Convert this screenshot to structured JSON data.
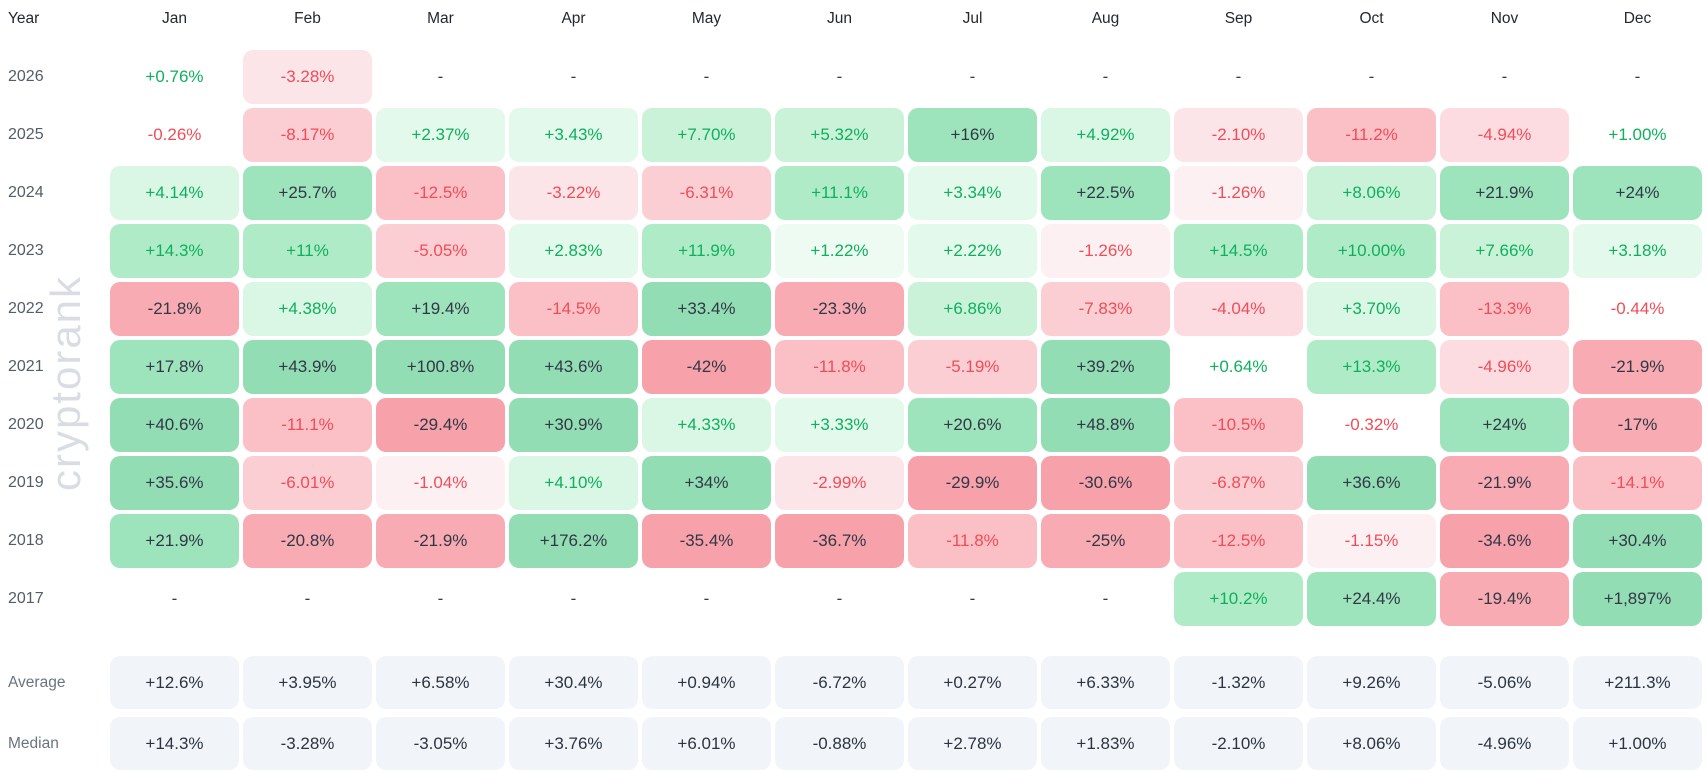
{
  "watermark": "cryptorank",
  "colors": {
    "green_text": "#0eb05e",
    "red_text": "#f14c57",
    "dark_text": "#313845",
    "dash_text": "#353c48",
    "green_bg": [
      "",
      "#eefbf2",
      "#e3f9eb",
      "#daf6e4",
      "#c9f2d9",
      "#b0ebc7",
      "#9de3bc",
      "#93ddb5"
    ],
    "red_bg": [
      "",
      "#fdf0f2",
      "#fce5e8",
      "#fcdce1",
      "#fbced3",
      "#fac0c6",
      "#f8abb2",
      "#f7a1aa"
    ],
    "summary_bg": "#f1f5fa",
    "summary_text": "#2c3440",
    "watermark_text": "#d9dde3"
  },
  "chart_data": {
    "type": "heatmap",
    "title": "Monthly returns heatmap by year",
    "row_header": "Year",
    "columns": [
      "Jan",
      "Feb",
      "Mar",
      "Apr",
      "May",
      "Jun",
      "Jul",
      "Aug",
      "Sep",
      "Oct",
      "Nov",
      "Dec"
    ],
    "rows": [
      {
        "label": "2026",
        "values": [
          "+0.76%",
          "-3.28%",
          "-",
          "-",
          "-",
          "-",
          "-",
          "-",
          "-",
          "-",
          "-",
          "-"
        ]
      },
      {
        "label": "2025",
        "values": [
          "-0.26%",
          "-8.17%",
          "+2.37%",
          "+3.43%",
          "+7.70%",
          "+5.32%",
          "+16%",
          "+4.92%",
          "-2.10%",
          "-11.2%",
          "-4.94%",
          "+1.00%"
        ]
      },
      {
        "label": "2024",
        "values": [
          "+4.14%",
          "+25.7%",
          "-12.5%",
          "-3.22%",
          "-6.31%",
          "+11.1%",
          "+3.34%",
          "+22.5%",
          "-1.26%",
          "+8.06%",
          "+21.9%",
          "+24%"
        ]
      },
      {
        "label": "2023",
        "values": [
          "+14.3%",
          "+11%",
          "-5.05%",
          "+2.83%",
          "+11.9%",
          "+1.22%",
          "+2.22%",
          "-1.26%",
          "+14.5%",
          "+10.00%",
          "+7.66%",
          "+3.18%"
        ]
      },
      {
        "label": "2022",
        "values": [
          "-21.8%",
          "+4.38%",
          "+19.4%",
          "-14.5%",
          "+33.4%",
          "-23.3%",
          "+6.86%",
          "-7.83%",
          "-4.04%",
          "+3.70%",
          "-13.3%",
          "-0.44%"
        ]
      },
      {
        "label": "2021",
        "values": [
          "+17.8%",
          "+43.9%",
          "+100.8%",
          "+43.6%",
          "-42%",
          "-11.8%",
          "-5.19%",
          "+39.2%",
          "+0.64%",
          "+13.3%",
          "-4.96%",
          "-21.9%"
        ]
      },
      {
        "label": "2020",
        "values": [
          "+40.6%",
          "-11.1%",
          "-29.4%",
          "+30.9%",
          "+4.33%",
          "+3.33%",
          "+20.6%",
          "+48.8%",
          "-10.5%",
          "-0.32%",
          "+24%",
          "-17%"
        ]
      },
      {
        "label": "2019",
        "values": [
          "+35.6%",
          "-6.01%",
          "-1.04%",
          "+4.10%",
          "+34%",
          "-2.99%",
          "-29.9%",
          "-30.6%",
          "-6.87%",
          "+36.6%",
          "-21.9%",
          "-14.1%"
        ]
      },
      {
        "label": "2018",
        "values": [
          "+21.9%",
          "-20.8%",
          "-21.9%",
          "+176.2%",
          "-35.4%",
          "-36.7%",
          "-11.8%",
          "-25%",
          "-12.5%",
          "-1.15%",
          "-34.6%",
          "+30.4%"
        ]
      },
      {
        "label": "2017",
        "values": [
          "-",
          "-",
          "-",
          "-",
          "-",
          "-",
          "-",
          "-",
          "+10.2%",
          "+24.4%",
          "-19.4%",
          "+1,897%"
        ]
      }
    ],
    "summary": [
      {
        "label": "Average",
        "values": [
          "+12.6%",
          "+3.95%",
          "+6.58%",
          "+30.4%",
          "+0.94%",
          "-6.72%",
          "+0.27%",
          "+6.33%",
          "-1.32%",
          "+9.26%",
          "-5.06%",
          "+211.3%"
        ]
      },
      {
        "label": "Median",
        "values": [
          "+14.3%",
          "-3.28%",
          "-3.05%",
          "+3.76%",
          "+6.01%",
          "-0.88%",
          "+2.78%",
          "+1.83%",
          "-2.10%",
          "+8.06%",
          "-4.96%",
          "+1.00%"
        ]
      }
    ]
  }
}
